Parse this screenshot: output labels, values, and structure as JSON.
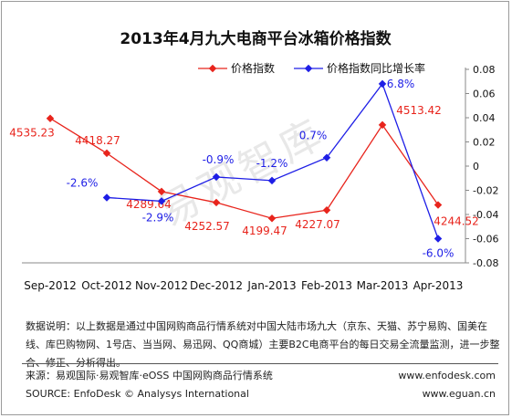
{
  "chart_data": {
    "type": "line",
    "title": "2013年4月九大电商平台冰箱价格指数",
    "categories": [
      "Sep-2012",
      "Oct-2012",
      "Nov-2012",
      "Dec-2012",
      "Jan-2013",
      "Feb-2013",
      "Mar-2013",
      "Apr-2013"
    ],
    "series": [
      {
        "name": "价格指数",
        "axis": "left",
        "color": "#e8241c",
        "values": [
          4535.23,
          4418.27,
          4289.64,
          4252.57,
          4199.47,
          4227.07,
          4513.42,
          4244.52
        ],
        "labels": [
          "4535.23",
          "4418.27",
          "4289.64",
          "4252.57",
          "4199.47",
          "4227.07",
          "4513.42",
          "4244.52"
        ]
      },
      {
        "name": "价格指数同比增长率",
        "axis": "right",
        "color": "#1e1ee6",
        "values": [
          null,
          -0.026,
          -0.029,
          -0.009,
          -0.012,
          0.007,
          0.068,
          -0.06
        ],
        "labels": [
          null,
          "-2.6%",
          "-2.9%",
          "-0.9%",
          "-1.2%",
          "0.7%",
          "6.8%",
          "-6.0%"
        ]
      }
    ],
    "y2_ticks": [
      "0.08",
      "0.06",
      "0.04",
      "0.02",
      "0",
      "-0.02",
      "-0.04",
      "-0.06",
      "-0.08"
    ],
    "y2_lim": [
      -0.08,
      0.08
    ],
    "legend_position": "top",
    "grid": false
  },
  "watermark": "易观智库",
  "note": "数据说明：以上数据是通过中国网购商品行情系统对中国大陆市场九大（京东、天猫、苏宁易购、国美在线、库巴购物网、1号店、当当网、易迅网、QQ商城）主要B2C电商平台的每日交易全流量监测，进一步整合、修正、分析得出。",
  "source": {
    "line1": "来源：易观国际·易观智库·eOSS 中国网购商品行情系统",
    "line2": "SOURCE: EnfoDesk © Analysys International",
    "site1": "www.enfodesk.com",
    "site2": "www.eguan.cn"
  }
}
